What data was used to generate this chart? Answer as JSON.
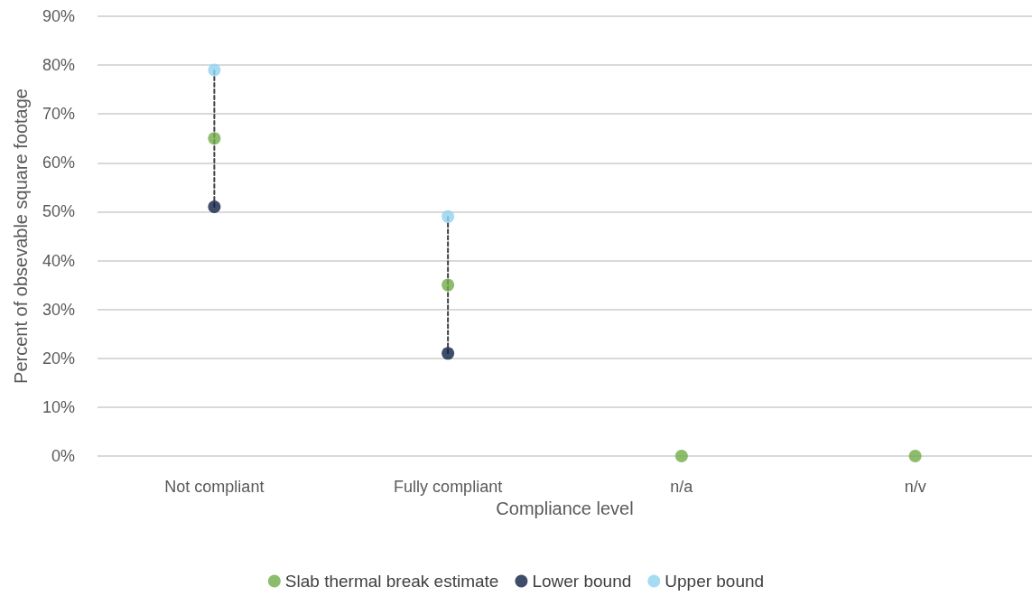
{
  "chart_data": {
    "type": "scatter",
    "xlabel": "Compliance level",
    "ylabel": "Percent of obsevable square footage",
    "categories": [
      "Not compliant",
      "Fully compliant",
      "n/a",
      "n/v"
    ],
    "series": [
      {
        "type": "line",
        "marker": "none",
        "line_style": "dashed",
        "color": "#404040",
        "x": [
          "Not compliant",
          "Not compliant"
        ],
        "values": [
          51,
          79
        ]
      },
      {
        "type": "line",
        "marker": "none",
        "line_style": "dashed",
        "color": "#404040",
        "x": [
          "Fully compliant",
          "Fully compliant"
        ],
        "values": [
          21,
          49
        ]
      },
      {
        "name": "Slab thermal break estimate",
        "color": "#70ad47",
        "values": [
          65,
          35,
          0,
          0
        ]
      },
      {
        "name": "Lower bound",
        "color": "#0f1f45",
        "values": [
          51,
          21,
          null,
          null
        ]
      },
      {
        "name": "Upper bound",
        "color": "#8fd3f0",
        "values": [
          79,
          49,
          null,
          null
        ]
      }
    ],
    "ylim": [
      0,
      90
    ],
    "yticks": [
      {
        "value": 0,
        "label": "0%"
      },
      {
        "value": 10,
        "label": "10%"
      },
      {
        "value": 20,
        "label": "20%"
      },
      {
        "value": 30,
        "label": "30%"
      },
      {
        "value": 40,
        "label": "40%"
      },
      {
        "value": 50,
        "label": "50%"
      },
      {
        "value": 60,
        "label": "60%"
      },
      {
        "value": 70,
        "label": "70%"
      },
      {
        "value": 80,
        "label": "80%"
      },
      {
        "value": 90,
        "label": "90%"
      }
    ],
    "grid": "y",
    "legend": "bottom",
    "marker": "circle"
  }
}
